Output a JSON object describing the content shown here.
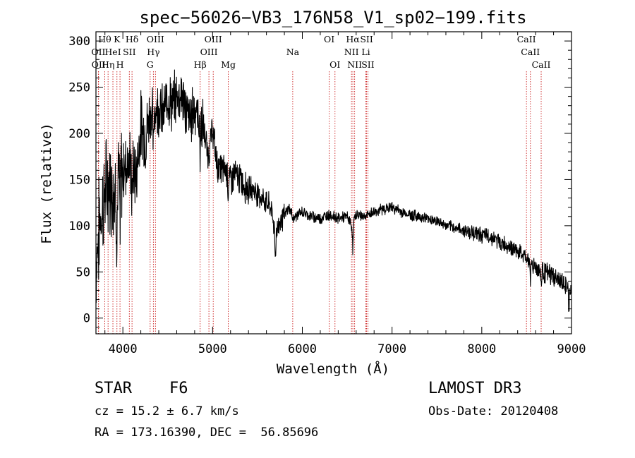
{
  "chart_data": {
    "type": "line",
    "title": "spec−56026−VB3_176N58_V1_sp02−199.fits",
    "xlabel": "Wavelength (Å)",
    "ylabel": "Flux (relative)",
    "xlim": [
      3700,
      9000
    ],
    "ylim": [
      -17,
      310
    ],
    "xticks": [
      4000,
      5000,
      6000,
      7000,
      8000,
      9000
    ],
    "yticks": [
      0,
      50,
      100,
      150,
      200,
      250,
      300
    ],
    "series": [
      {
        "name": "spectrum",
        "color": "#000000",
        "x": [
          3700,
          3750,
          3800,
          3850,
          3900,
          3950,
          4000,
          4050,
          4100,
          4150,
          4200,
          4250,
          4300,
          4350,
          4400,
          4450,
          4500,
          4550,
          4600,
          4650,
          4700,
          4750,
          4800,
          4850,
          4900,
          4950,
          5000,
          5050,
          5100,
          5150,
          5200,
          5250,
          5300,
          5350,
          5400,
          5450,
          5500,
          5550,
          5600,
          5650,
          5700,
          5750,
          5800,
          5850,
          5900,
          5950,
          6000,
          6100,
          6200,
          6300,
          6400,
          6500,
          6550,
          6600,
          6700,
          6800,
          6900,
          7000,
          7100,
          7200,
          7300,
          7400,
          7500,
          7600,
          7700,
          7800,
          7900,
          8000,
          8100,
          8200,
          8300,
          8400,
          8500,
          8600,
          8700,
          8800,
          8900,
          9000
        ],
        "y": [
          60,
          110,
          135,
          150,
          140,
          145,
          160,
          170,
          165,
          155,
          210,
          195,
          220,
          225,
          230,
          220,
          240,
          230,
          240,
          245,
          225,
          215,
          230,
          215,
          205,
          175,
          205,
          165,
          160,
          160,
          150,
          155,
          150,
          145,
          140,
          140,
          135,
          130,
          125,
          120,
          90,
          105,
          110,
          120,
          108,
          112,
          115,
          110,
          108,
          112,
          108,
          110,
          100,
          112,
          110,
          115,
          118,
          120,
          115,
          112,
          110,
          108,
          105,
          100,
          98,
          95,
          93,
          90,
          88,
          82,
          78,
          72,
          65,
          55,
          50,
          45,
          38,
          30
        ]
      }
    ],
    "line_markers": [
      {
        "label": "Hθ",
        "wavelength": 3798,
        "row": 0
      },
      {
        "label": "OII",
        "wavelength": 3727,
        "row": 1
      },
      {
        "label": "OII",
        "wavelength": 3729,
        "row": 2
      },
      {
        "label": "K",
        "wavelength": 3934,
        "row": 0
      },
      {
        "label": "Hη",
        "wavelength": 3835,
        "row": 2
      },
      {
        "label": "HeI",
        "wavelength": 3889,
        "row": 1
      },
      {
        "label": "H",
        "wavelength": 3968,
        "row": 2
      },
      {
        "label": "Hδ",
        "wavelength": 4102,
        "row": 0
      },
      {
        "label": "SII",
        "wavelength": 4072,
        "row": 1
      },
      {
        "label": "OIII",
        "wavelength": 4363,
        "row": 0
      },
      {
        "label": "Hγ",
        "wavelength": 4340,
        "row": 1
      },
      {
        "label": "G",
        "wavelength": 4304,
        "row": 2
      },
      {
        "label": "OIII",
        "wavelength": 5007,
        "row": 0
      },
      {
        "label": "OIII",
        "wavelength": 4959,
        "row": 1
      },
      {
        "label": "Hβ",
        "wavelength": 4861,
        "row": 2
      },
      {
        "label": "Mg",
        "wavelength": 5175,
        "row": 2
      },
      {
        "label": "Na",
        "wavelength": 5893,
        "row": 1
      },
      {
        "label": "OI",
        "wavelength": 6300,
        "row": 0
      },
      {
        "label": "OI",
        "wavelength": 6364,
        "row": 2
      },
      {
        "label": "Hα",
        "wavelength": 6563,
        "row": 0
      },
      {
        "label": "SII",
        "wavelength": 6716,
        "row": 0
      },
      {
        "label": "NII",
        "wavelength": 6548,
        "row": 1
      },
      {
        "label": "Li",
        "wavelength": 6708,
        "row": 1
      },
      {
        "label": "NII",
        "wavelength": 6583,
        "row": 2
      },
      {
        "label": "SII",
        "wavelength": 6731,
        "row": 2
      },
      {
        "label": "CaII",
        "wavelength": 8498,
        "row": 0
      },
      {
        "label": "CaII",
        "wavelength": 8542,
        "row": 1
      },
      {
        "label": "CaII",
        "wavelength": 8662,
        "row": 2
      }
    ],
    "colors": {
      "spectrum": "#000000",
      "markers": "#cc2222",
      "axes": "#000000"
    }
  },
  "footer": {
    "object_type": "STAR",
    "subclass": "F6",
    "survey": "LAMOST DR3",
    "cz": "cz = 15.2 ± 6.7 km/s",
    "obs_date": "Obs-Date: 20120408",
    "coords": "RA = 173.16390, DEC =  56.85696"
  }
}
